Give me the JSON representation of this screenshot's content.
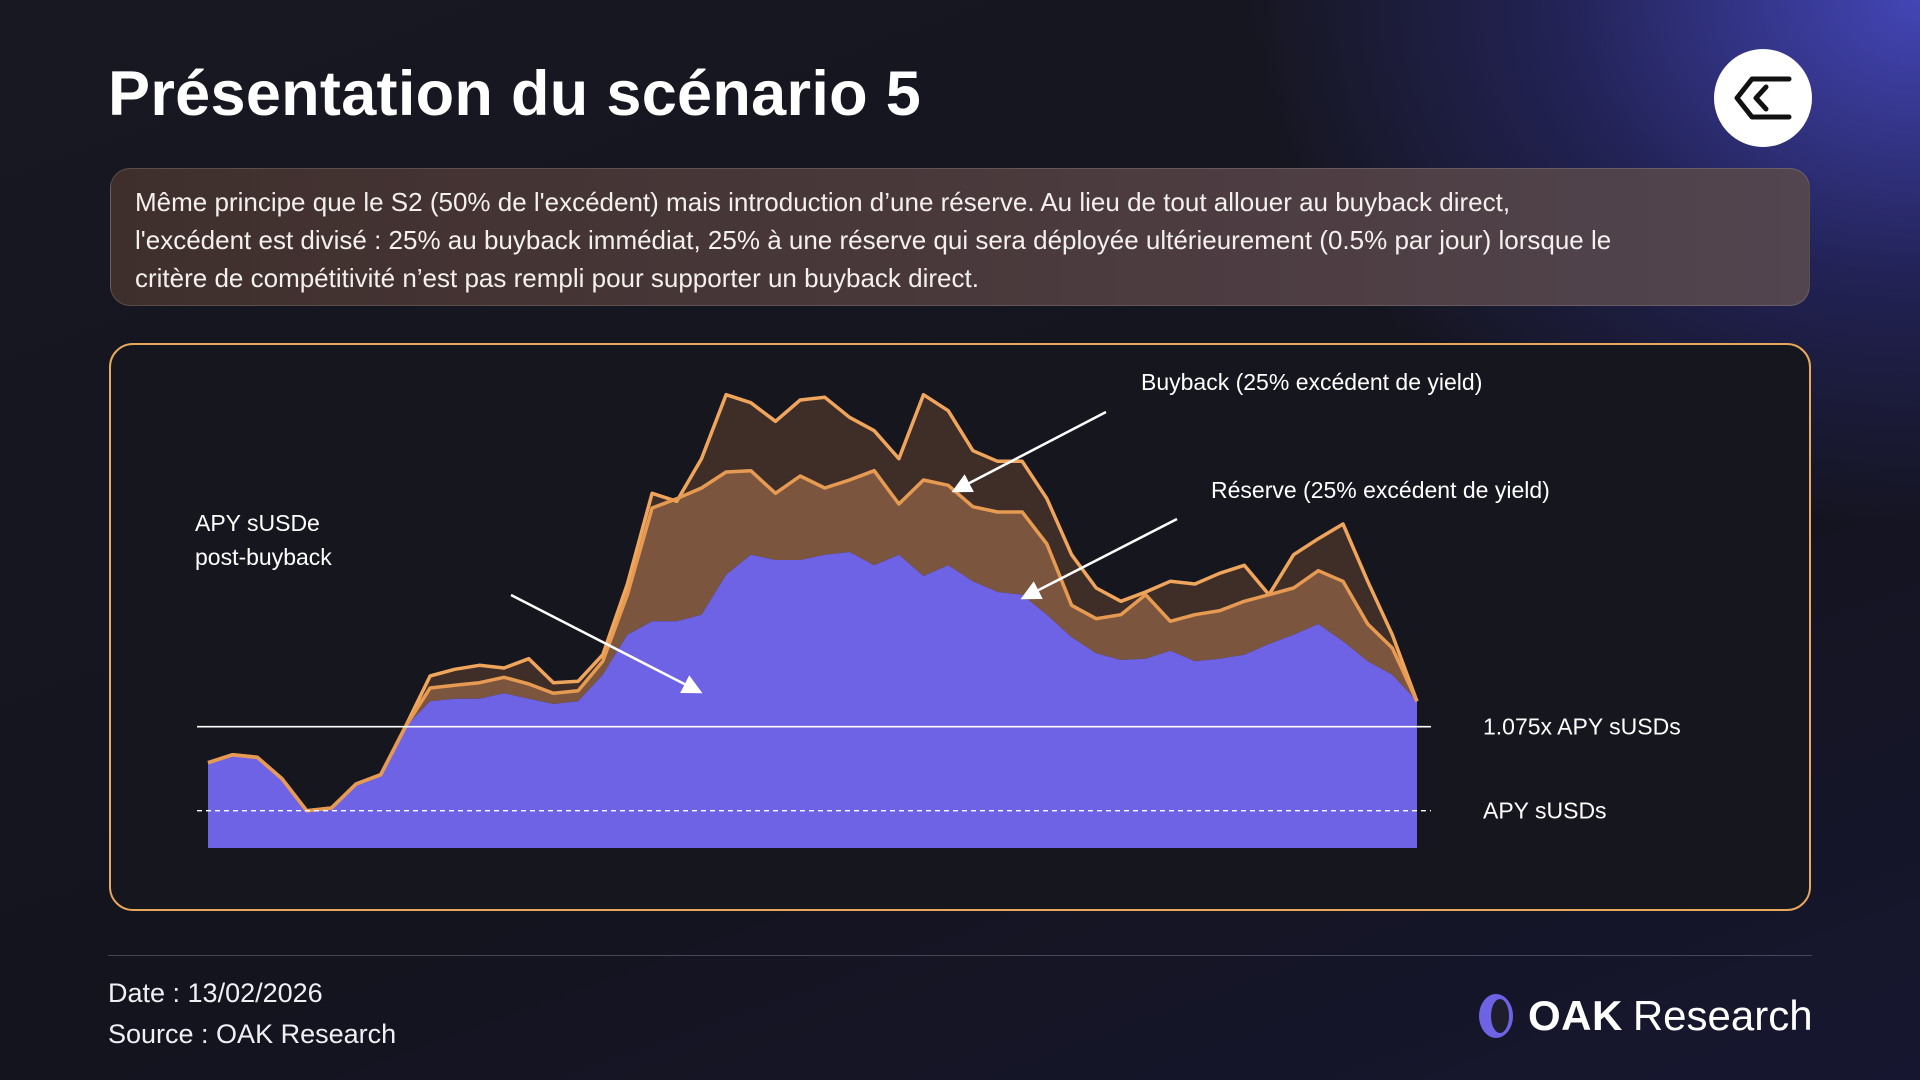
{
  "header": {
    "title": "Présentation du scénario 5",
    "logo_icon": "sigma-icon"
  },
  "description": {
    "lines": [
      "Même principe que le S2 (50% de l'excédent) mais introduction d’une réserve. Au lieu de tout allouer au buyback direct,",
      "l'excédent est divisé : 25% au buyback immédiat, 25% à une réserve qui sera déployée ultérieurement (0.5% par jour) lorsque le",
      "critère de compétitivité n’est pas rempli pour supporter un buyback direct."
    ]
  },
  "chart_data": {
    "type": "area",
    "title": "",
    "xlabel": "",
    "ylabel": "",
    "ylim": [
      0,
      360
    ],
    "x": [
      0,
      1,
      2,
      3,
      4,
      5,
      6,
      7,
      8,
      9,
      10,
      11,
      12,
      13,
      14,
      15,
      16,
      17,
      18,
      19,
      20,
      21,
      22,
      23,
      24,
      25,
      26,
      27,
      28,
      29,
      30,
      31,
      32,
      33,
      34,
      35,
      36,
      37,
      38,
      39,
      40,
      41,
      42,
      43,
      44,
      45,
      46,
      47,
      48,
      49
    ],
    "series": [
      {
        "name": "APY sUSDe post-buyback",
        "color": "#6f63e5",
        "values": [
          64,
          70,
          68,
          52,
          28,
          30,
          48,
          55,
          91,
          110,
          112,
          112,
          116,
          112,
          108,
          110,
          130,
          160,
          170,
          170,
          175,
          205,
          220,
          216,
          216,
          220,
          222,
          212,
          220,
          204,
          212,
          200,
          192,
          190,
          175,
          158,
          146,
          141,
          142,
          148,
          140,
          142,
          145,
          153,
          160,
          168,
          155,
          140,
          130,
          110
        ]
      },
      {
        "name": "Réserve (25% excédent de yield)",
        "color": "#e79a52",
        "values": [
          64,
          70,
          68,
          52,
          28,
          30,
          48,
          55,
          91,
          120,
          122,
          124,
          128,
          123,
          116,
          118,
          140,
          190,
          255,
          262,
          270,
          282,
          283,
          266,
          279,
          270,
          276,
          283,
          258,
          276,
          272,
          256,
          252,
          252,
          228,
          182,
          172,
          175,
          190,
          170,
          175,
          178,
          185,
          190,
          195,
          208,
          200,
          168,
          150,
          110
        ]
      },
      {
        "name": "Buyback (25% excédent de yield)",
        "color": "#f0a55c",
        "values": [
          64,
          70,
          68,
          52,
          28,
          30,
          48,
          55,
          91,
          129,
          134,
          137,
          135,
          142,
          124,
          125,
          145,
          198,
          266,
          260,
          292,
          340,
          334,
          320,
          336,
          338,
          323,
          313,
          292,
          340,
          328,
          298,
          290,
          290,
          262,
          220,
          195,
          185,
          192,
          200,
          198,
          206,
          212,
          190,
          220,
          232,
          243,
          200,
          160,
          110
        ]
      }
    ],
    "reference_lines": [
      {
        "name": "1.075x APY sUSDs",
        "y": 91,
        "style": "solid"
      },
      {
        "name": "APY sUSDs",
        "y": 28,
        "style": "dashed"
      }
    ],
    "annotations": [
      {
        "text": "Buyback (25% excédent de yield)",
        "points_to": "Buyback (25% excédent de yield)"
      },
      {
        "text": "Réserve (25% excédent de yield)",
        "points_to": "Réserve (25% excédent de yield)"
      },
      {
        "lines": [
          "APY sUSDe",
          "post-buyback"
        ],
        "points_to": "APY sUSDe post-buyback"
      }
    ]
  },
  "footer": {
    "date": "Date : 13/02/2026",
    "source": "Source : OAK Research",
    "brand_strong": "OAK",
    "brand_light": "Research",
    "brand_icon": "oak-ring-icon"
  },
  "colors": {
    "accent_orange": "#e8a85c",
    "area_purple": "#6f63e5",
    "background": "#16161f"
  }
}
